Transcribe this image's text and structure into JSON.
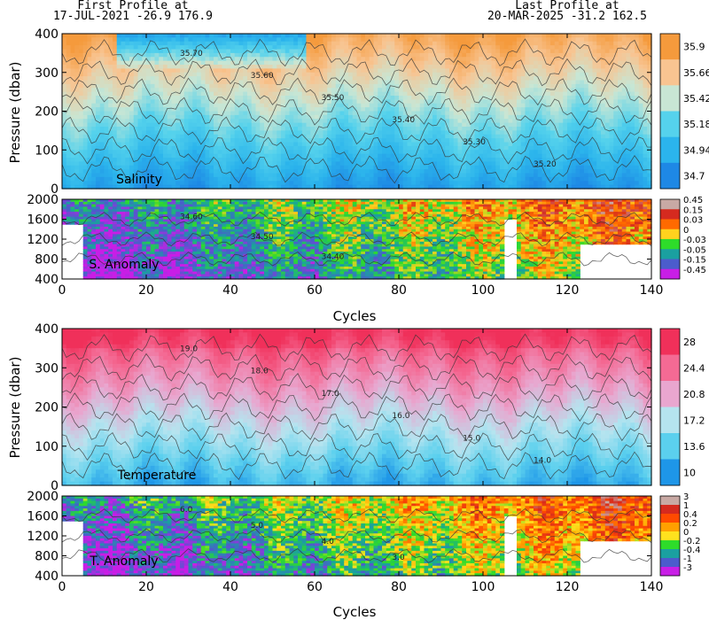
{
  "header": {
    "first_label": "First Profile at",
    "first_value": "17-JUL-2021    -26.9  176.9",
    "last_label": "Last Profile at",
    "last_value": "20-MAR-2025    -31.2  162.5"
  },
  "chart_data": [
    {
      "type": "heatmap",
      "title": "Salinity",
      "ylabel": "Pressure (dbar)",
      "xlabel": "",
      "xlim": [
        0,
        140
      ],
      "ylim": [
        400,
        0
      ],
      "y_ticks": [
        0,
        100,
        200,
        300,
        400
      ],
      "colorbar": [
        {
          "label": "35.9",
          "color": "#f59a3c"
        },
        {
          "label": "35.66",
          "color": "#f8c491"
        },
        {
          "label": "35.42",
          "color": "#c8e6d4"
        },
        {
          "label": "35.18",
          "color": "#55d2ec"
        },
        {
          "label": "34.94",
          "color": "#2bb4ec"
        },
        {
          "label": "34.7",
          "color": "#1e88e5"
        }
      ],
      "contour_labels": [
        "35.70",
        "35.60",
        "35.50",
        "35.40",
        "35.30",
        "35.20"
      ]
    },
    {
      "type": "heatmap",
      "title": "S. Anomaly",
      "xlabel": "Cycles",
      "xlim": [
        0,
        140
      ],
      "ylim": [
        2000,
        400
      ],
      "x_ticks": [
        0,
        20,
        40,
        60,
        80,
        100,
        120,
        140
      ],
      "y_ticks": [
        400,
        800,
        1200,
        1600,
        2000
      ],
      "colorbar": [
        {
          "label": "0.45",
          "color": "#c8a9a4"
        },
        {
          "label": "0.15",
          "color": "#d52a1f"
        },
        {
          "label": "0.03",
          "color": "#ff6a00"
        },
        {
          "label": "0",
          "color": "#ffd21e"
        },
        {
          "label": "-0.03",
          "color": "#2edc2a"
        },
        {
          "label": "-0.05",
          "color": "#1aa0a0"
        },
        {
          "label": "-0.15",
          "color": "#4b5ccc"
        },
        {
          "label": "-0.45",
          "color": "#c81ee6"
        }
      ],
      "contour_labels": [
        "34.60",
        "34.50",
        "34.40"
      ]
    },
    {
      "type": "heatmap",
      "title": "Temperature",
      "ylabel": "Pressure (dbar)",
      "xlabel": "",
      "xlim": [
        0,
        140
      ],
      "ylim": [
        400,
        0
      ],
      "y_ticks": [
        0,
        100,
        200,
        300,
        400
      ],
      "colorbar": [
        {
          "label": "28",
          "color": "#f0305a"
        },
        {
          "label": "24.4",
          "color": "#f46a94"
        },
        {
          "label": "20.8",
          "color": "#e9a6cf"
        },
        {
          "label": "17.2",
          "color": "#b5e4ef"
        },
        {
          "label": "13.6",
          "color": "#5bd0ee"
        },
        {
          "label": "10",
          "color": "#1e96e8"
        }
      ],
      "contour_labels": [
        "19.0",
        "18.0",
        "17.0",
        "16.0",
        "15.0",
        "14.0"
      ]
    },
    {
      "type": "heatmap",
      "title": "T. Anomaly",
      "xlabel": "Cycles",
      "xlim": [
        0,
        140
      ],
      "ylim": [
        2000,
        400
      ],
      "x_ticks": [
        0,
        20,
        40,
        60,
        80,
        100,
        120,
        140
      ],
      "y_ticks": [
        400,
        800,
        1200,
        1600,
        2000
      ],
      "colorbar": [
        {
          "label": "3",
          "color": "#c8a9a4"
        },
        {
          "label": "1",
          "color": "#d52a1f"
        },
        {
          "label": "0.4",
          "color": "#ff4a00"
        },
        {
          "label": "0.2",
          "color": "#ffa000"
        },
        {
          "label": "0",
          "color": "#ffe21e"
        },
        {
          "label": "-0.2",
          "color": "#2edc2a"
        },
        {
          "label": "-0.4",
          "color": "#1aa0a0"
        },
        {
          "label": "-1",
          "color": "#4b5ccc"
        },
        {
          "label": "-3",
          "color": "#c81ee6"
        }
      ],
      "contour_labels": [
        "6.0",
        "5.0",
        "4.0",
        "3.0"
      ]
    }
  ]
}
